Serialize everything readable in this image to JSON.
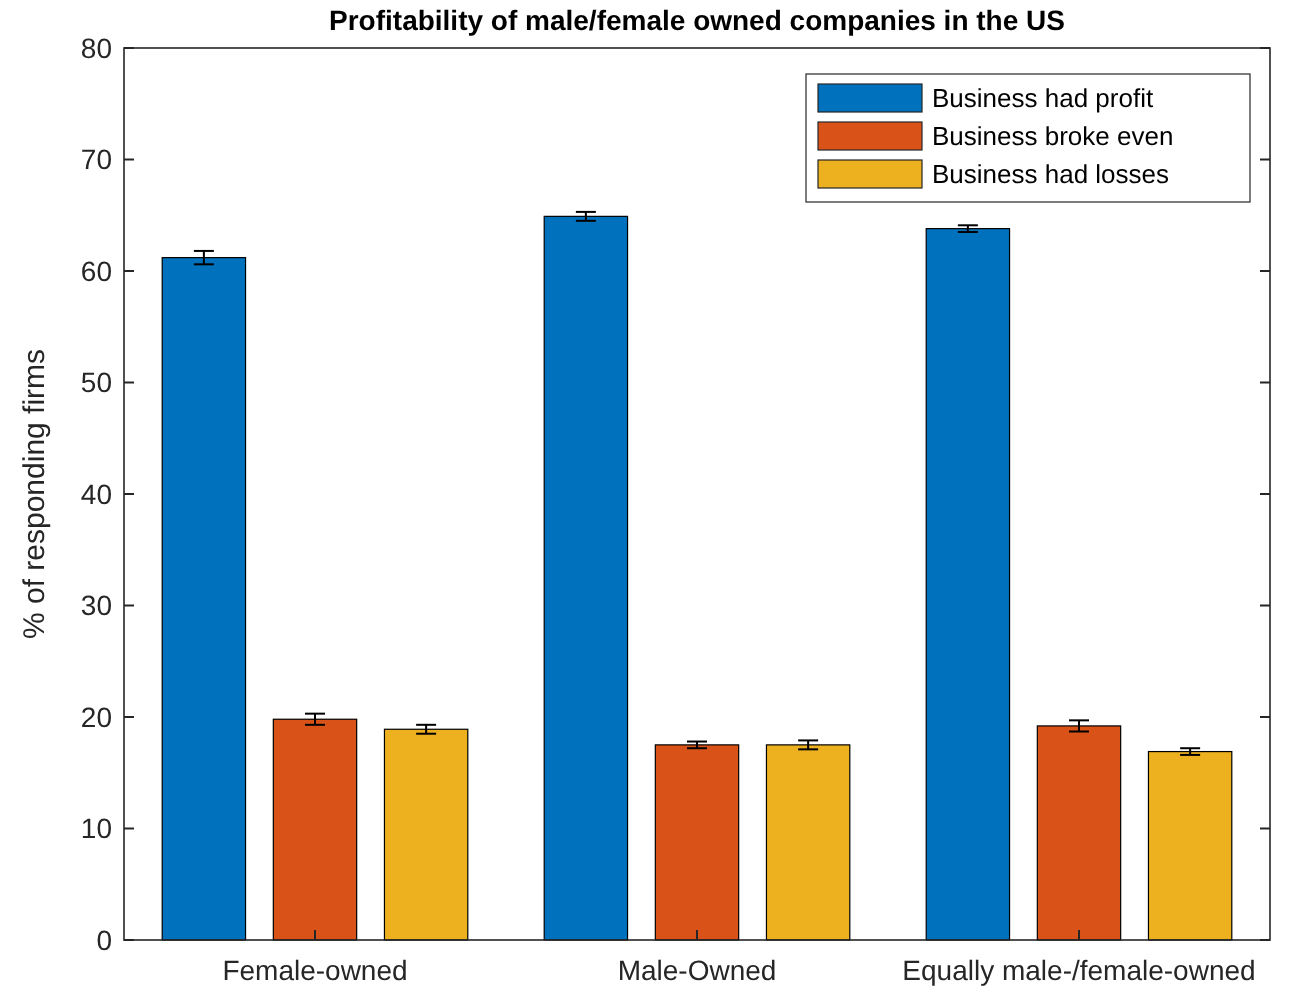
{
  "chart_data": {
    "type": "bar",
    "title": "Profitability of male/female owned companies in the US",
    "ylabel": "% of responding firms",
    "categories": [
      "Female-owned",
      "Male-Owned",
      "Equally male-/female-owned"
    ],
    "series": [
      {
        "name": "Business had profit",
        "color": "#0072bd",
        "values": [
          61.2,
          64.9,
          63.8
        ],
        "errors": [
          0.6,
          0.4,
          0.3
        ]
      },
      {
        "name": "Business broke even",
        "color": "#d95319",
        "values": [
          19.8,
          17.5,
          19.2
        ],
        "errors": [
          0.5,
          0.3,
          0.5
        ]
      },
      {
        "name": "Business had losses",
        "color": "#edb120",
        "values": [
          18.9,
          17.5,
          16.9
        ],
        "errors": [
          0.4,
          0.4,
          0.3
        ]
      }
    ],
    "ylim": [
      0,
      80
    ],
    "yticks": [
      0,
      10,
      20,
      30,
      40,
      50,
      60,
      70,
      80
    ],
    "grid": false,
    "legend": "top right"
  }
}
